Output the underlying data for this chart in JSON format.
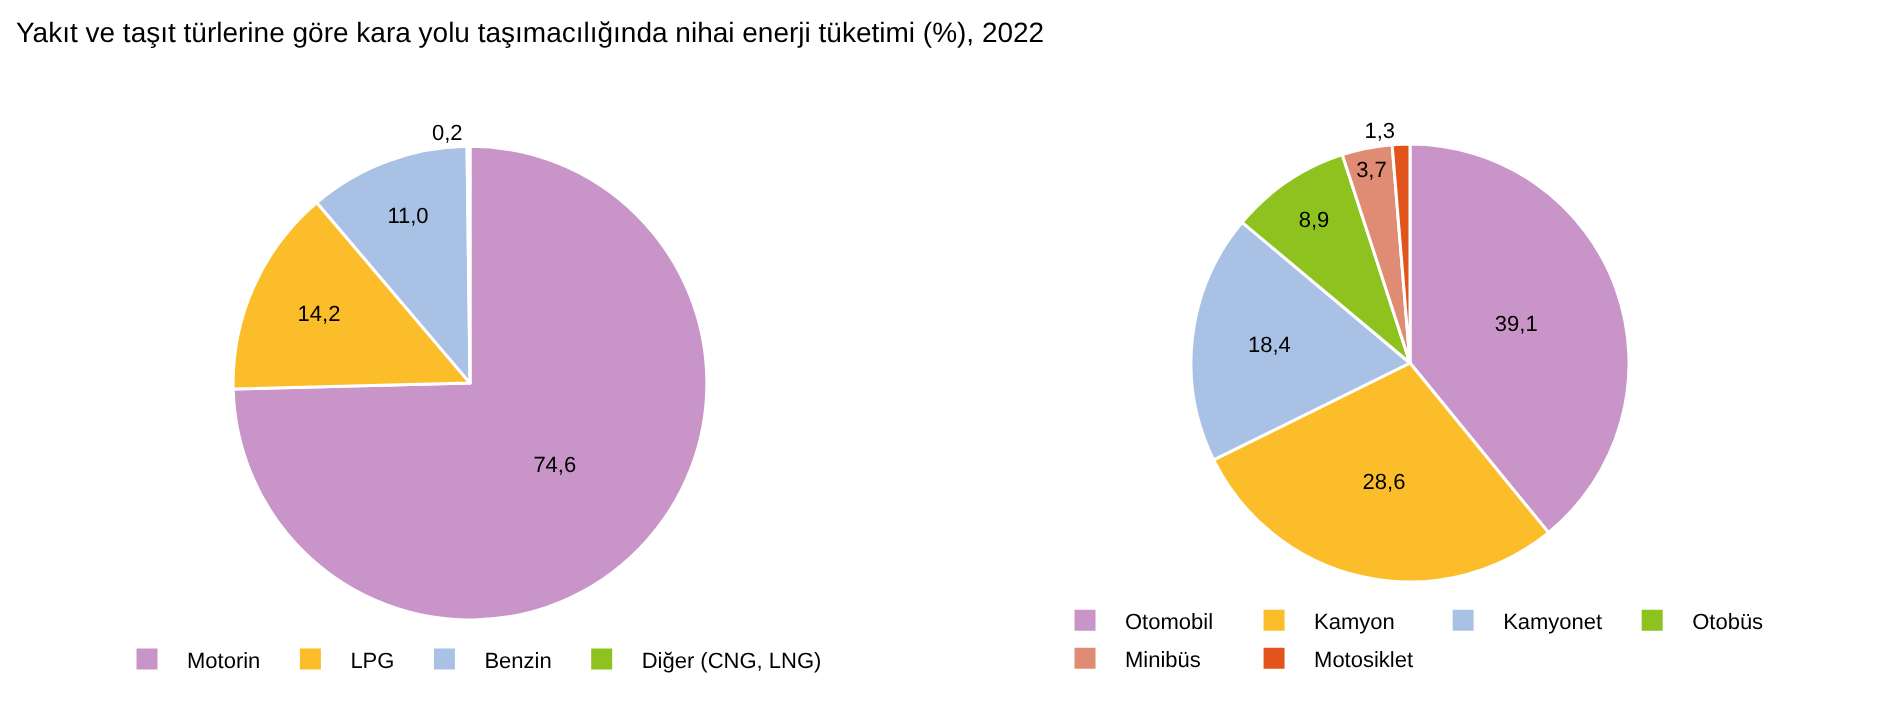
{
  "chart_data": [
    {
      "type": "pie",
      "title": "Yakıt ve taşıt türlerine göre kara yolu taşımacılığında nihai enerji tüketimi (%), 2022",
      "categories": [
        "Motorin",
        "LPG",
        "Benzin",
        "Diğer (CNG, LNG)"
      ],
      "values": [
        74.6,
        14.2,
        11.0,
        0.2
      ],
      "value_labels": [
        "74,6",
        "14,2",
        "11,0",
        "0,2"
      ],
      "colors": [
        "#c994c7",
        "#fbbd2a",
        "#a9c1e4",
        "#8dc21f"
      ],
      "legend": "bottom"
    },
    {
      "type": "pie",
      "categories": [
        "Otomobil",
        "Kamyon",
        "Kamyonet",
        "Otobüs",
        "Minibüs",
        "Motosiklet"
      ],
      "values": [
        39.1,
        28.6,
        18.4,
        8.9,
        3.7,
        1.3
      ],
      "value_labels": [
        "39,1",
        "28,6",
        "18,4",
        "8,9",
        "3,7",
        "1,3"
      ],
      "colors": [
        "#c994c7",
        "#fbbd2a",
        "#a9c1e4",
        "#8dc21f",
        "#e08c74",
        "#e2541b"
      ],
      "legend": "bottom"
    }
  ]
}
